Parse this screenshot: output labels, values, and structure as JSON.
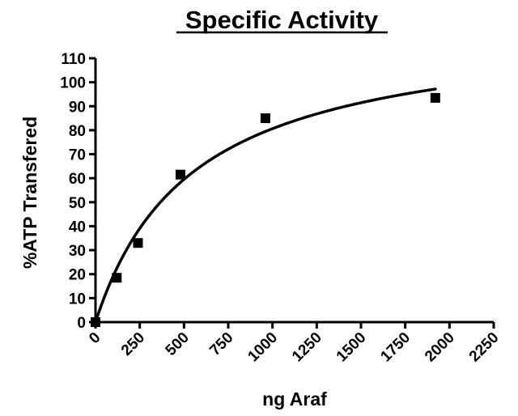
{
  "chart_data": {
    "type": "scatter",
    "title": "Specific Activity",
    "xlabel": "ng Araf",
    "ylabel": "%ATP Transfered",
    "xlim": [
      0,
      2250
    ],
    "ylim": [
      0,
      110
    ],
    "x_ticks": [
      0,
      250,
      500,
      750,
      1000,
      1250,
      1500,
      1750,
      2000,
      2250
    ],
    "y_ticks": [
      0,
      10,
      20,
      30,
      40,
      50,
      60,
      70,
      80,
      90,
      100,
      110
    ],
    "x_tick_labels": [
      "0",
      "250",
      "500",
      "750",
      "1000",
      "1250",
      "1500",
      "1750",
      "2000",
      "2250"
    ],
    "y_tick_labels": [
      "0",
      "10",
      "20",
      "30",
      "40",
      "50",
      "60",
      "70",
      "80",
      "90",
      "100",
      "110"
    ],
    "grid": false,
    "legend": "none",
    "series": [
      {
        "marker": "square",
        "points": [
          {
            "x": 0,
            "y": 0
          },
          {
            "x": 120,
            "y": 18.5
          },
          {
            "x": 240,
            "y": 33
          },
          {
            "x": 480,
            "y": 61.5
          },
          {
            "x": 960,
            "y": 85
          },
          {
            "x": 1920,
            "y": 93.5
          }
        ]
      }
    ],
    "fit": {
      "type": "line",
      "model": "michaelis-menten",
      "vmax": 125,
      "km": 550,
      "x_range": [
        0,
        1920
      ]
    },
    "colors": {
      "marker": "#000000",
      "line": "#000000",
      "axis": "#000000"
    }
  }
}
